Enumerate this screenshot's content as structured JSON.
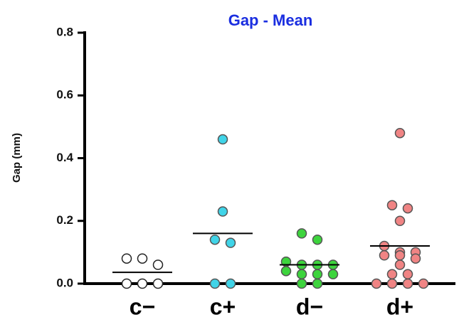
{
  "chart_data": {
    "type": "strip",
    "title": "Gap - Mean",
    "y_label": "Gap (mm)",
    "ylim": [
      0,
      0.8
    ],
    "yticks": [
      {
        "value": 0,
        "label": "0.0"
      },
      {
        "value": 0.2,
        "label": "0.2"
      },
      {
        "value": 0.4,
        "label": "0.4"
      },
      {
        "value": 0.6,
        "label": "0.6"
      },
      {
        "value": 0.8,
        "label": "0.8"
      }
    ],
    "groups": [
      {
        "name": "c−",
        "color": "#ffffff",
        "values": [
          0.08,
          0.06,
          0.08,
          0,
          0,
          0
        ],
        "mean": 0.036
      },
      {
        "name": "c+",
        "color": "#40d4e8",
        "values": [
          0.46,
          0.23,
          0.14,
          0.13,
          0,
          0
        ],
        "mean": 0.16
      },
      {
        "name": "d−",
        "color": "#3dd43d",
        "values": [
          0.16,
          0.14,
          0.07,
          0.06,
          0.06,
          0.06,
          0.04,
          0.03,
          0.03,
          0.03,
          0,
          0
        ],
        "mean": 0.06
      },
      {
        "name": "d+",
        "color": "#f08484",
        "values": [
          0.48,
          0.25,
          0.24,
          0.2,
          0.12,
          0.1,
          0.1,
          0.09,
          0.09,
          0.08,
          0.06,
          0.03,
          0.03,
          0,
          0,
          0,
          0
        ],
        "mean": 0.12
      }
    ]
  }
}
